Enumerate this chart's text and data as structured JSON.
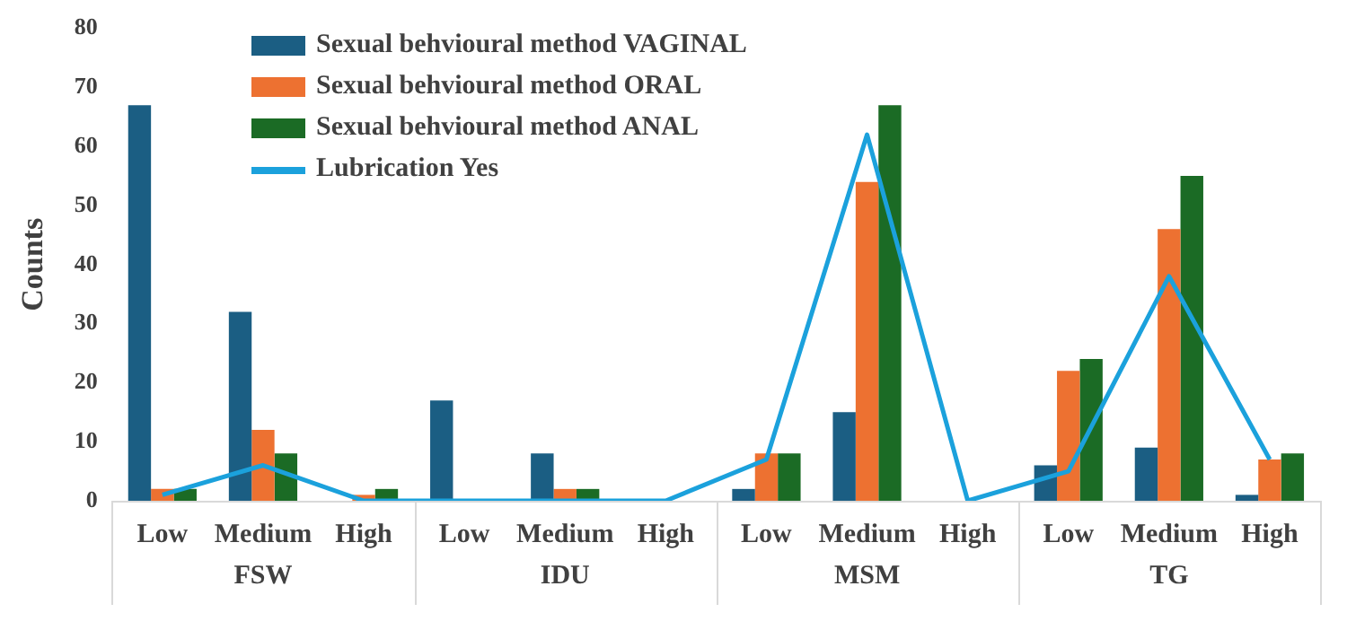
{
  "chart_data": {
    "type": "bar",
    "ylabel": "Counts",
    "categories": [
      "Low",
      "Medium",
      "High",
      "Low",
      "Medium",
      "High",
      "Low",
      "Medium",
      "High",
      "Low",
      "Medium",
      "High"
    ],
    "annotations": [
      "FSW",
      "IDU",
      "MSM",
      "TG"
    ],
    "series": [
      {
        "name": "Sexual behvioural method VAGINAL",
        "color": "#1b5e83",
        "values": [
          67,
          32,
          0,
          17,
          8,
          0,
          2,
          15,
          0,
          6,
          9,
          1
        ]
      },
      {
        "name": "Sexual behvioural method ORAL",
        "color": "#ed7131",
        "values": [
          2,
          12,
          1,
          0,
          2,
          0,
          8,
          54,
          0,
          22,
          46,
          7
        ]
      },
      {
        "name": "Sexual behvioural method ANAL",
        "color": "#1b6b25",
        "values": [
          2,
          8,
          2,
          0,
          2,
          0,
          8,
          67,
          0,
          24,
          55,
          8
        ]
      },
      {
        "name": "Lubrication Yes",
        "type": "line",
        "color": "#1ba1dc",
        "values": [
          1,
          6,
          0,
          0,
          0,
          0,
          7,
          62,
          0,
          5,
          38,
          7
        ]
      }
    ],
    "ylim": [
      0,
      80
    ],
    "yticks": [
      0,
      10,
      20,
      30,
      40,
      50,
      60,
      70,
      80
    ],
    "grid": false,
    "legend": "top left",
    "marker": "none"
  }
}
